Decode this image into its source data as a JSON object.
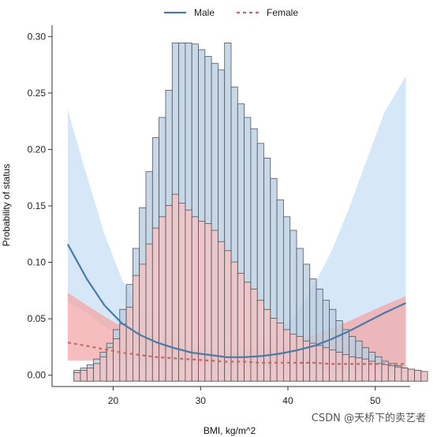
{
  "chart_data": {
    "type": "histogram_with_fitted_curves",
    "xlabel": "BMI, kg/m^2",
    "ylabel": "Probability of status",
    "xlim": [
      13,
      54
    ],
    "ylim": [
      -0.01,
      0.31
    ],
    "xticks": [
      20,
      30,
      40,
      50
    ],
    "yticks": [
      0.0,
      0.05,
      0.1,
      0.15,
      0.2,
      0.25,
      0.3
    ],
    "ytick_labels": [
      "0.00",
      "0.05",
      "0.10",
      "0.15",
      "0.20",
      "0.25",
      "0.30"
    ],
    "legend": {
      "position": "top",
      "entries": [
        "Male",
        "Female"
      ]
    },
    "colors": {
      "male_line": "#4a7aa6",
      "female_line": "#c46a6a",
      "male_band": "#cfe3f7",
      "female_band": "#f2a7a7",
      "male_bar": "#b9d0e3",
      "female_bar": "#f1c2c4",
      "bar_edge": "#555555"
    },
    "series": [
      {
        "name": "Male",
        "style": "solid",
        "x": [
          14.8,
          17,
          19,
          21,
          23,
          25,
          27,
          29,
          31,
          33,
          35,
          37,
          39,
          41,
          43,
          45,
          47,
          49,
          51,
          53.5
        ],
        "y": [
          0.116,
          0.085,
          0.062,
          0.046,
          0.036,
          0.029,
          0.024,
          0.02,
          0.018,
          0.016,
          0.016,
          0.017,
          0.019,
          0.022,
          0.026,
          0.032,
          0.039,
          0.047,
          0.055,
          0.064
        ],
        "lower": [
          0.065,
          0.055,
          0.043,
          0.035,
          0.029,
          0.024,
          0.02,
          0.017,
          0.015,
          0.013,
          0.012,
          0.011,
          0.01,
          0.009,
          0.008,
          0.007,
          0.007,
          0.006,
          0.006,
          0.006
        ],
        "upper": [
          0.235,
          0.176,
          0.125,
          0.085,
          0.058,
          0.042,
          0.032,
          0.026,
          0.023,
          0.022,
          0.024,
          0.03,
          0.04,
          0.056,
          0.08,
          0.11,
          0.148,
          0.19,
          0.232,
          0.265
        ]
      },
      {
        "name": "Female",
        "style": "dashed",
        "x": [
          14.8,
          17,
          19,
          21,
          23,
          25,
          27,
          29,
          31,
          33,
          35,
          37,
          39,
          41,
          43,
          45,
          47,
          49,
          51,
          53.5
        ],
        "y": [
          0.029,
          0.026,
          0.023,
          0.02,
          0.018,
          0.016,
          0.015,
          0.014,
          0.013,
          0.012,
          0.012,
          0.011,
          0.011,
          0.011,
          0.011,
          0.01,
          0.01,
          0.01,
          0.01,
          0.01
        ],
        "lower": [
          0.013,
          0.013,
          0.013,
          0.013,
          0.013,
          0.012,
          0.012,
          0.011,
          0.01,
          0.009,
          0.008,
          0.007,
          0.006,
          0.006,
          0.005,
          0.004,
          0.003,
          0.003,
          0.002,
          0.002
        ],
        "upper": [
          0.073,
          0.062,
          0.052,
          0.043,
          0.036,
          0.03,
          0.026,
          0.024,
          0.022,
          0.021,
          0.022,
          0.024,
          0.027,
          0.031,
          0.036,
          0.042,
          0.048,
          0.055,
          0.062,
          0.07
        ]
      }
    ],
    "histograms": {
      "bin_width": 0.75,
      "start": 15.5,
      "male_distribution": [
        0.004,
        0.006,
        0.009,
        0.014,
        0.02,
        0.028,
        0.04,
        0.058,
        0.08,
        0.112,
        0.148,
        0.18,
        0.21,
        0.228,
        0.252,
        0.294,
        0.294,
        0.294,
        0.293,
        0.288,
        0.282,
        0.276,
        0.27,
        0.294,
        0.255,
        0.24,
        0.228,
        0.218,
        0.205,
        0.192,
        0.174,
        0.155,
        0.14,
        0.128,
        0.112,
        0.098,
        0.085,
        0.076,
        0.066,
        0.058,
        0.048,
        0.04,
        0.034,
        0.03,
        0.024,
        0.02,
        0.016,
        0.012,
        0.01,
        0.008,
        0.006,
        0.005,
        0.004,
        0.003
      ],
      "female_distribution": [
        0.002,
        0.004,
        0.006,
        0.01,
        0.016,
        0.024,
        0.032,
        0.045,
        0.06,
        0.088,
        0.098,
        0.116,
        0.13,
        0.14,
        0.15,
        0.16,
        0.152,
        0.146,
        0.14,
        0.136,
        0.134,
        0.128,
        0.118,
        0.11,
        0.1,
        0.09,
        0.082,
        0.076,
        0.066,
        0.058,
        0.05,
        0.046,
        0.04,
        0.036,
        0.034,
        0.03,
        0.028,
        0.026,
        0.024,
        0.022,
        0.02,
        0.018,
        0.016,
        0.015,
        0.014,
        0.012,
        0.01,
        0.009,
        0.008,
        0.007,
        0.006,
        0.005,
        0.004,
        0.003
      ]
    }
  },
  "watermark": "CSDN @天桥下的卖艺者"
}
